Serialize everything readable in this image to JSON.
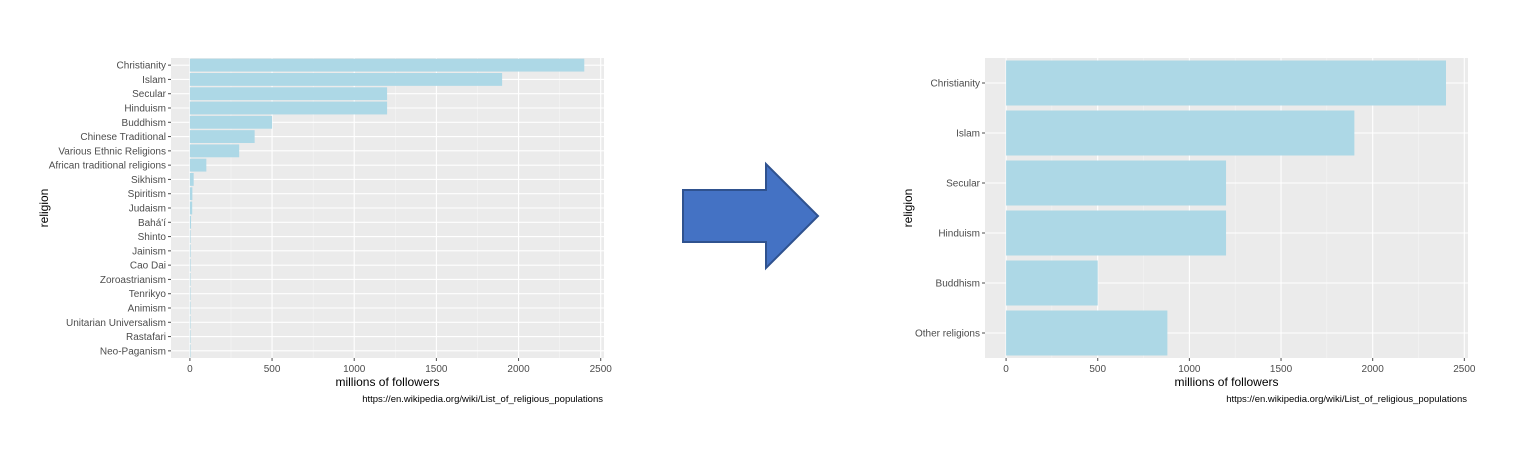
{
  "colors": {
    "panel_bg": "#EBEBEB",
    "grid_major": "#FFFFFF",
    "bar_fill": "#ADD8E6",
    "axis_text": "#4D4D4D",
    "title_text": "#000000",
    "arrow_fill": "#4472C4",
    "arrow_stroke": "#2F528F"
  },
  "arrow": {
    "icon": "right-arrow-icon"
  },
  "chart_data": [
    {
      "type": "bar",
      "orientation": "horizontal",
      "categories": [
        "Christianity",
        "Islam",
        "Secular",
        "Hinduism",
        "Buddhism",
        "Chinese Traditional",
        "Various Ethnic Religions",
        "African traditional religions",
        "Sikhism",
        "Spiritism",
        "Judaism",
        "Bahá'í",
        "Shinto",
        "Jainism",
        "Cao Dai",
        "Zoroastrianism",
        "Tenrikyo",
        "Animism",
        "Unitarian Universalism",
        "Rastafari",
        "Neo-Paganism"
      ],
      "values": [
        2400,
        1900,
        1200,
        1200,
        500,
        394,
        300,
        100,
        23,
        15,
        14,
        7,
        4,
        4.2,
        4,
        2.6,
        2,
        1.5,
        0.8,
        0.6,
        0.1
      ],
      "xlabel": "millions of followers",
      "ylabel": "religion",
      "caption": "https://en.wikipedia.org/wiki/List_of_religious_populations",
      "xticks": [
        0,
        500,
        1000,
        1500,
        2000,
        2500
      ],
      "xticklabels": [
        "0",
        "500",
        "1000",
        "1500",
        "2000",
        "2500"
      ],
      "xlim": [
        -115,
        2520
      ],
      "grid": true
    },
    {
      "type": "bar",
      "orientation": "horizontal",
      "categories": [
        "Christianity",
        "Islam",
        "Secular",
        "Hinduism",
        "Buddhism",
        "Other religions"
      ],
      "values": [
        2400,
        1900,
        1200,
        1200,
        500,
        880
      ],
      "xlabel": "millions of followers",
      "ylabel": "religion",
      "caption": "https://en.wikipedia.org/wiki/List_of_religious_populations",
      "xticks": [
        0,
        500,
        1000,
        1500,
        2000,
        2500
      ],
      "xticklabels": [
        "0",
        "500",
        "1000",
        "1500",
        "2000",
        "2500"
      ],
      "xlim": [
        -115,
        2520
      ],
      "grid": true
    }
  ]
}
